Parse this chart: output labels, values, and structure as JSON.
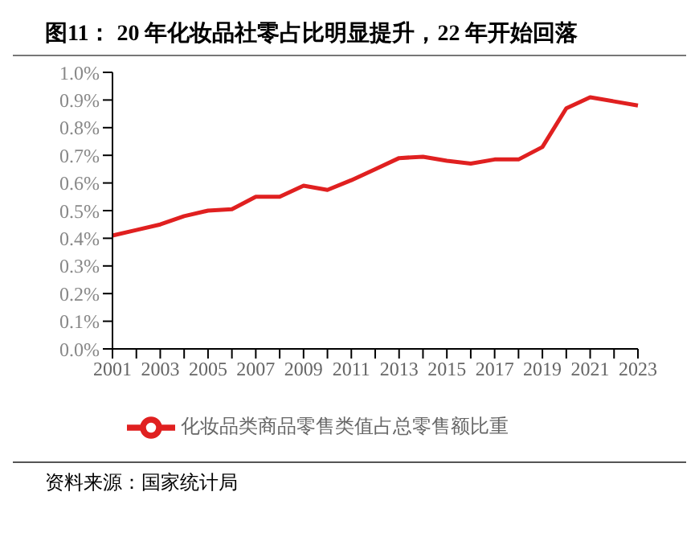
{
  "chart_data": {
    "type": "line",
    "title": "图11：  20 年化妆品社零占比明显提升，22 年开始回落",
    "categories": [
      "2001",
      null,
      "2003",
      null,
      "2005",
      null,
      "2007",
      null,
      "2009",
      null,
      "2011",
      null,
      "2013",
      null,
      "2015",
      null,
      "2017",
      null,
      "2019",
      null,
      "2021",
      null,
      "2023"
    ],
    "series": [
      {
        "name": "化妆品类商品零售类值占总零售额比重",
        "color": "#e02020",
        "values": [
          0.41,
          0.43,
          0.45,
          0.48,
          0.5,
          0.505,
          0.55,
          0.55,
          0.59,
          0.575,
          0.61,
          0.65,
          0.69,
          0.695,
          0.68,
          0.67,
          0.685,
          0.685,
          0.73,
          0.87,
          0.91,
          0.895,
          0.88
        ]
      }
    ],
    "ylim": [
      0,
      1.0
    ],
    "yticks": [
      {
        "value": 0,
        "label": "0.0%"
      },
      {
        "value": 0.1,
        "label": "0.1%"
      },
      {
        "value": 0.2,
        "label": "0.2%"
      },
      {
        "value": 0.3,
        "label": "0.3%"
      },
      {
        "value": 0.4,
        "label": "0.4%"
      },
      {
        "value": 0.5,
        "label": "0.5%"
      },
      {
        "value": 0.6,
        "label": "0.6%"
      },
      {
        "value": 0.7,
        "label": "0.7%"
      },
      {
        "value": 0.8,
        "label": "0.8%"
      },
      {
        "value": 0.9,
        "label": "0.9%"
      },
      {
        "value": 1.0,
        "label": "1.0%"
      }
    ],
    "grid": false,
    "legend": "bottom",
    "marker": "none",
    "line_style": "solid",
    "annotations": [
      "资料来源：国家统计局"
    ]
  }
}
